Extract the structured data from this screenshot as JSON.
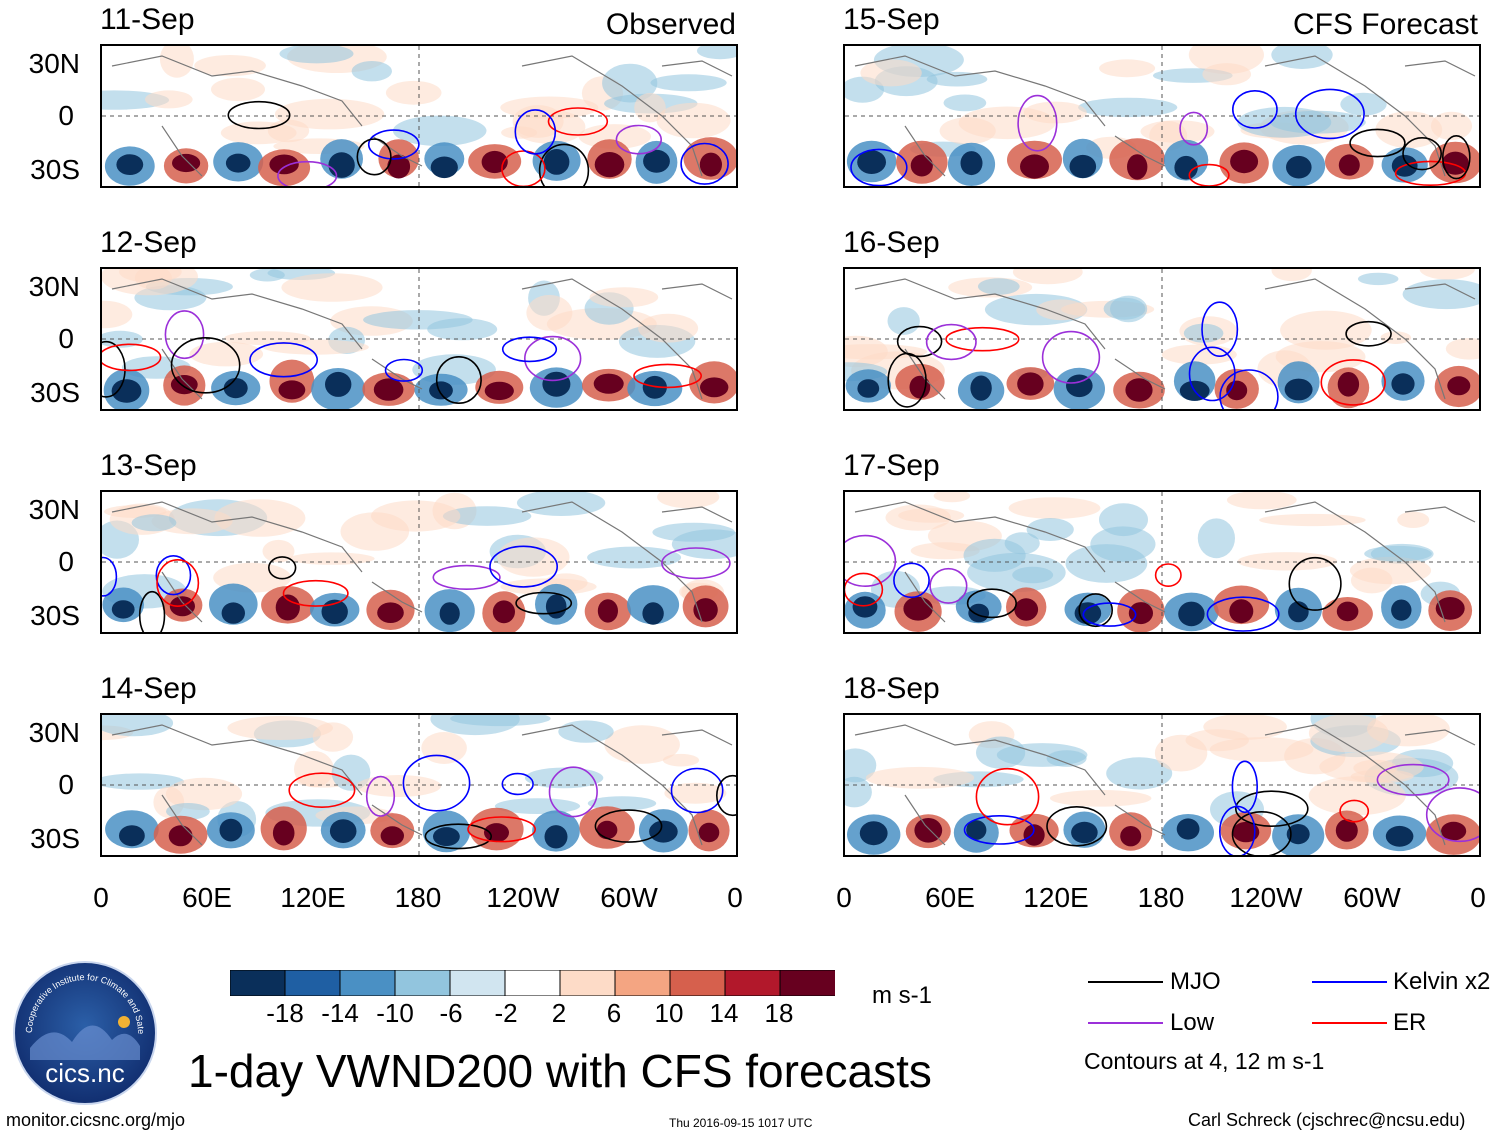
{
  "figure": {
    "title": "1-day VWND200 with CFS forecasts",
    "footer_left": "monitor.cicsnc.org/mjo",
    "footer_center": "Thu 2016-09-15 1017 UTC",
    "footer_right": "Carl Schreck (cjschrec@ncsu.edu)"
  },
  "logo": {
    "text": "cics.nc",
    "ring_text": "Cooperative Institute for Climate and Satellites"
  },
  "columns": {
    "left_label": "Observed",
    "right_label": "CFS Forecast"
  },
  "panels_left": [
    {
      "date": "11-Sep"
    },
    {
      "date": "12-Sep"
    },
    {
      "date": "13-Sep"
    },
    {
      "date": "14-Sep"
    }
  ],
  "panels_right": [
    {
      "date": "15-Sep"
    },
    {
      "date": "16-Sep"
    },
    {
      "date": "17-Sep"
    },
    {
      "date": "18-Sep"
    }
  ],
  "axes": {
    "lat_ticks": [
      "30N",
      "0",
      "30S"
    ],
    "lon_ticks": [
      "0",
      "60E",
      "120E",
      "180",
      "120W",
      "60W",
      "0"
    ]
  },
  "colorbar": {
    "unit": "m s-1",
    "ticks": [
      "-18",
      "-14",
      "-10",
      "-6",
      "-2",
      "2",
      "6",
      "10",
      "14",
      "18"
    ],
    "colors": [
      "#0a2f5a",
      "#1f5fa3",
      "#4a90c4",
      "#92c5de",
      "#d1e5f0",
      "#ffffff",
      "#fddbc7",
      "#f4a582",
      "#d6604d",
      "#b2182b",
      "#67001f"
    ]
  },
  "legend": {
    "items": [
      {
        "label": "MJO",
        "color": "#000000"
      },
      {
        "label": "Kelvin x2",
        "color": "#0000ff"
      },
      {
        "label": "Low",
        "color": "#9b30d9"
      },
      {
        "label": "ER",
        "color": "#ff0000"
      }
    ],
    "note": "Contours at 4, 12 m s-1"
  }
}
